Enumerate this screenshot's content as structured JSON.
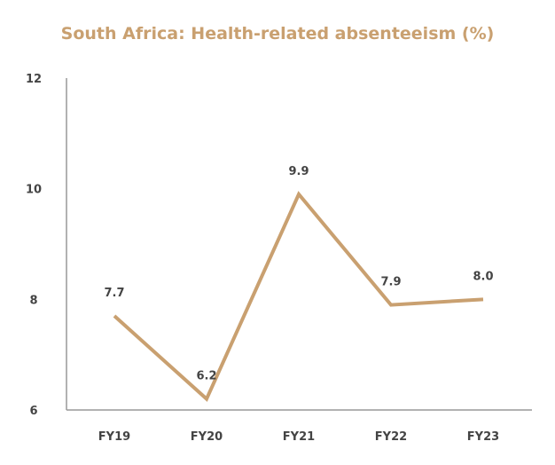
{
  "chart_data": {
    "type": "line",
    "title": "South Africa: Health-related absenteeism (%)",
    "categories": [
      "FY19",
      "FY20",
      "FY21",
      "FY22",
      "FY23"
    ],
    "series": [
      {
        "values": [
          7.7,
          6.2,
          9.9,
          7.9,
          8.0
        ],
        "color": "#C9A070"
      }
    ],
    "data_labels": [
      "7.7",
      "6.2",
      "9.9",
      "7.9",
      "8.0"
    ],
    "yticks": [
      "6",
      "8",
      "10",
      "12"
    ],
    "ylim": [
      6,
      12
    ],
    "xlabel": "",
    "ylabel": "",
    "grid": false,
    "legend": "none",
    "title_color": "#C9A070",
    "line_color": "#C9A070"
  }
}
